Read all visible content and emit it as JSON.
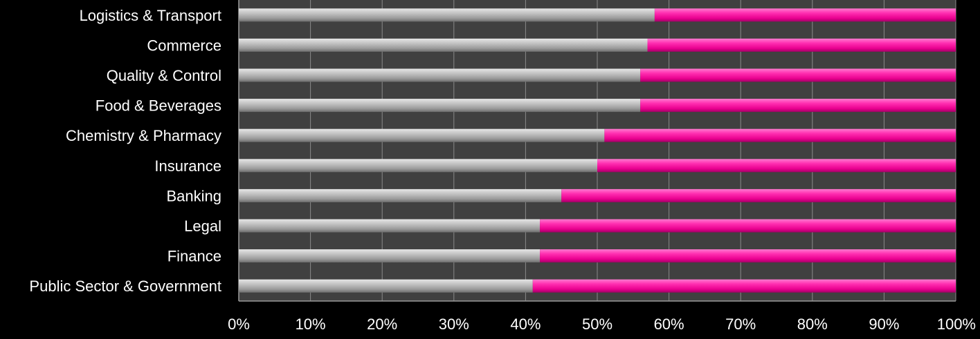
{
  "chart_data": {
    "type": "bar",
    "orientation": "horizontal",
    "stacked": true,
    "percent_stacked": true,
    "categories": [
      "Logistics & Transport",
      "Commerce",
      "Quality & Control",
      "Food & Beverages",
      "Chemistry & Pharmacy",
      "Insurance",
      "Banking",
      "Legal",
      "Finance",
      "Public Sector & Government"
    ],
    "series": [
      {
        "values": [
          58,
          57,
          56,
          56,
          51,
          50,
          45,
          42,
          42,
          41
        ],
        "color": "#a8a8a8"
      },
      {
        "values": [
          42,
          43,
          44,
          44,
          49,
          50,
          55,
          58,
          58,
          59
        ],
        "color": "#ff1aa6"
      }
    ],
    "x_ticks": [
      "0%",
      "10%",
      "20%",
      "30%",
      "40%",
      "50%",
      "60%",
      "70%",
      "80%",
      "90%",
      "100%"
    ],
    "xlim": [
      0,
      100
    ],
    "grid": true,
    "legend": "none",
    "background_color": "#000000",
    "plot_background_color": "#404040",
    "gridline_color": "#8a8a8a",
    "text_color": "#ffffff"
  }
}
